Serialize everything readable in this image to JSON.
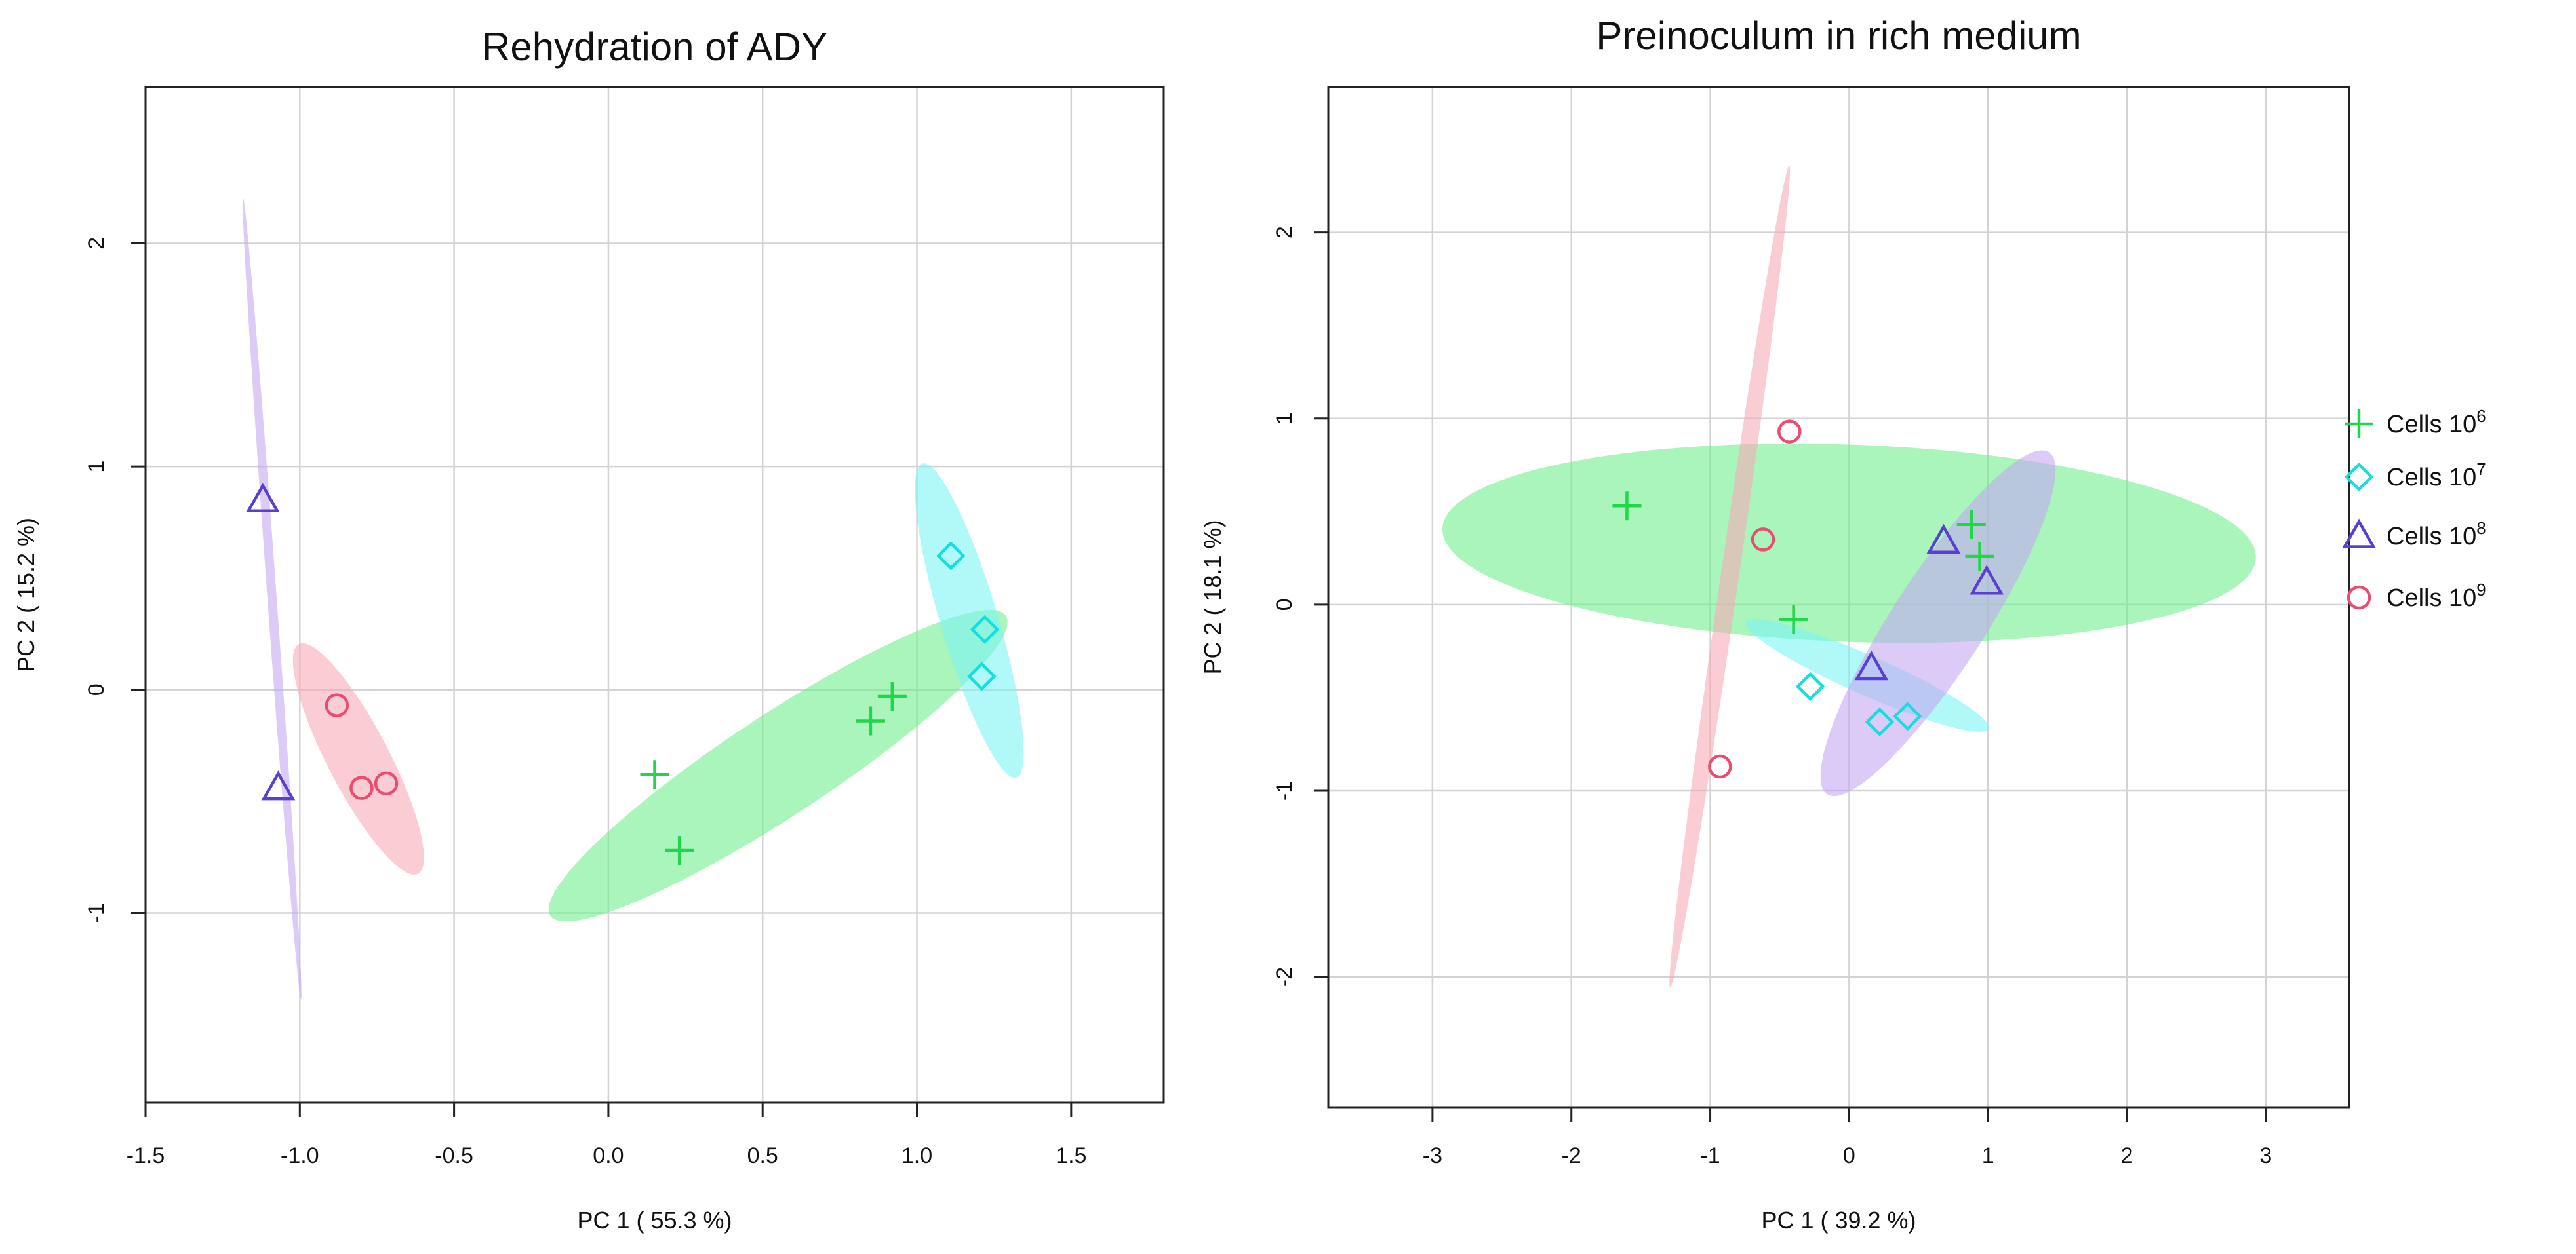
{
  "colors": {
    "cells_1e6": "#22d64a",
    "cells_1e7": "#14dede",
    "cells_1e8": "#5a3fd0",
    "cells_1e9": "#ea4d6f",
    "fill_1e6": "#6fee8f",
    "fill_1e7": "#7df3f5",
    "fill_1e8": "#c3a8f0",
    "fill_1e9": "#f7aab8",
    "grid": "#d3d3d3",
    "axis": "#222222"
  },
  "legend": {
    "entries": [
      {
        "key": "cells_1e6",
        "marker": "plus",
        "label": "Cells 10",
        "exp": "6"
      },
      {
        "key": "cells_1e7",
        "marker": "diamond",
        "label": "Cells 10",
        "exp": "7"
      },
      {
        "key": "cells_1e8",
        "marker": "triangle",
        "label": "Cells 10",
        "exp": "8"
      },
      {
        "key": "cells_1e9",
        "marker": "circle",
        "label": "Cells 10",
        "exp": "9"
      }
    ]
  },
  "chart_data": [
    {
      "type": "scatter",
      "title": "Rehydration of ADY",
      "xlabel": "PC 1 ( 55.3 %)",
      "ylabel": "PC 2 ( 15.2 %)",
      "xlim": [
        -1.5,
        1.8
      ],
      "ylim": [
        -1.85,
        2.7
      ],
      "xticks": [
        -1.5,
        -1.0,
        -0.5,
        0.0,
        0.5,
        1.0,
        1.5
      ],
      "xtick_labels": [
        "-1.5",
        "-1.0",
        "-0.5",
        "0.0",
        "0.5",
        "1.0",
        "1.5"
      ],
      "yticks": [
        -1,
        0,
        1,
        2
      ],
      "ytick_labels": [
        "-1",
        "0",
        "1",
        "2"
      ],
      "xgrid": [
        -1.5,
        -1.0,
        -0.5,
        0.0,
        0.5,
        1.0,
        1.5
      ],
      "ygrid": [
        -1,
        0,
        1,
        2
      ],
      "series": [
        {
          "key": "cells_1e6",
          "name": "Cells 10^6",
          "marker": "plus",
          "points": [
            [
              0.15,
              -0.38
            ],
            [
              0.23,
              -0.72
            ],
            [
              0.85,
              -0.14
            ],
            [
              0.92,
              -0.03
            ]
          ]
        },
        {
          "key": "cells_1e7",
          "name": "Cells 10^7",
          "marker": "diamond",
          "points": [
            [
              1.11,
              0.6
            ],
            [
              1.22,
              0.27
            ],
            [
              1.21,
              0.06
            ]
          ]
        },
        {
          "key": "cells_1e8",
          "name": "Cells 10^8",
          "marker": "triangle",
          "points": [
            [
              -1.12,
              0.85
            ],
            [
              -1.07,
              -0.44
            ]
          ]
        },
        {
          "key": "cells_1e9",
          "name": "Cells 10^9",
          "marker": "circle",
          "points": [
            [
              -0.88,
              -0.07
            ],
            [
              -0.8,
              -0.44
            ],
            [
              -0.72,
              -0.42
            ]
          ]
        }
      ],
      "ellipses": [
        {
          "key": "cells_1e9",
          "center": [
            -0.81,
            -0.31
          ],
          "a": 0.55,
          "b": 0.105,
          "angle_deg": -70
        },
        {
          "key": "cells_1e6",
          "center": [
            0.55,
            -0.34
          ],
          "a": 1.0,
          "b": 0.2,
          "angle_deg": 43
        },
        {
          "key": "cells_1e7",
          "center": [
            1.17,
            0.31
          ],
          "a": 0.72,
          "b": 0.095,
          "angle_deg": -78
        },
        {
          "key": "cells_1e8",
          "center": [
            -1.09,
            0.41
          ],
          "a": 1.8,
          "b": 0.015,
          "angle_deg": -87
        }
      ],
      "ellipse_order": [
        "cells_1e9",
        "cells_1e6",
        "cells_1e7",
        "cells_1e8"
      ]
    },
    {
      "type": "scatter",
      "title": "Preinoculum in rich medium",
      "xlabel": "PC 1 ( 39.2 %)",
      "ylabel": "PC 2 ( 18.1 %)",
      "xlim": [
        -3.75,
        3.6
      ],
      "ylim": [
        -2.7,
        2.78
      ],
      "xticks": [
        -3,
        -2,
        -1,
        0,
        1,
        2,
        3
      ],
      "xtick_labels": [
        "-3",
        "-2",
        "-1",
        "0",
        "1",
        "2",
        "3"
      ],
      "yticks": [
        -2,
        -1,
        0,
        1,
        2
      ],
      "ytick_labels": [
        "-2",
        "-1",
        "0",
        "1",
        "2"
      ],
      "xgrid": [
        -3,
        -2,
        -1,
        0,
        1,
        2,
        3
      ],
      "ygrid": [
        -2,
        -1,
        0,
        1,
        2
      ],
      "series": [
        {
          "key": "cells_1e6",
          "name": "Cells 10^6",
          "marker": "plus",
          "points": [
            [
              -1.6,
              0.53
            ],
            [
              -0.4,
              -0.08
            ],
            [
              0.88,
              0.43
            ],
            [
              0.94,
              0.26
            ]
          ]
        },
        {
          "key": "cells_1e7",
          "name": "Cells 10^7",
          "marker": "diamond",
          "points": [
            [
              -0.28,
              -0.44
            ],
            [
              0.22,
              -0.63
            ],
            [
              0.42,
              -0.6
            ]
          ]
        },
        {
          "key": "cells_1e8",
          "name": "Cells 10^8",
          "marker": "triangle",
          "points": [
            [
              0.68,
              0.34
            ],
            [
              0.99,
              0.12
            ],
            [
              0.16,
              -0.34
            ]
          ]
        },
        {
          "key": "cells_1e9",
          "name": "Cells 10^9",
          "marker": "circle",
          "points": [
            [
              -0.43,
              0.93
            ],
            [
              -0.62,
              0.35
            ],
            [
              -0.93,
              -0.87
            ]
          ]
        }
      ],
      "ellipses": [
        {
          "key": "cells_1e6",
          "center": [
            0.0,
            0.33
          ],
          "a": 2.93,
          "b": 0.53,
          "angle_deg": -1.5
        },
        {
          "key": "cells_1e7",
          "center": [
            0.13,
            -0.38
          ],
          "a": 0.92,
          "b": 0.11,
          "angle_deg": -18
        },
        {
          "key": "cells_1e8",
          "center": [
            0.64,
            -0.1
          ],
          "a": 1.22,
          "b": 0.3,
          "angle_deg": 48
        },
        {
          "key": "cells_1e9",
          "center": [
            -0.86,
            0.15
          ],
          "a": 2.25,
          "b": 0.065,
          "angle_deg": 79
        }
      ],
      "ellipse_order": [
        "cells_1e6",
        "cells_1e7",
        "cells_1e8",
        "cells_1e9"
      ]
    }
  ]
}
